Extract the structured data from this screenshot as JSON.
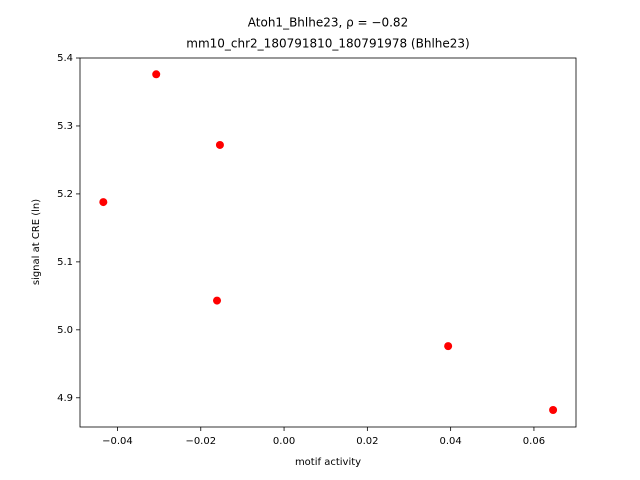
{
  "chart_data": {
    "type": "scatter",
    "title": "Atoh1_Bhlhe23, ρ = −0.82",
    "subtitle": "mm10_chr2_180791810_180791978 (Bhlhe23)",
    "x_label": "motif activity",
    "y_label": "signal at CRE (ln)",
    "color": "#ff0000",
    "x": [
      -0.0307,
      -0.0154,
      -0.0434,
      -0.0161,
      0.0394,
      0.0646
    ],
    "values": [
      5.376,
      5.272,
      5.188,
      5.043,
      4.976,
      4.882
    ],
    "xlim": [
      -0.049,
      0.0701
    ],
    "ylim": [
      4.857,
      5.4
    ],
    "xticks": [
      {
        "value": -0.04,
        "label": "−0.04"
      },
      {
        "value": -0.02,
        "label": "−0.02"
      },
      {
        "value": 0,
        "label": "0.00"
      },
      0.02,
      0.04,
      0.06
    ],
    "yticks": [
      4.9,
      {
        "value": 5.0,
        "label": "5.0"
      },
      5.1,
      5.2,
      5.3,
      5.4
    ]
  }
}
